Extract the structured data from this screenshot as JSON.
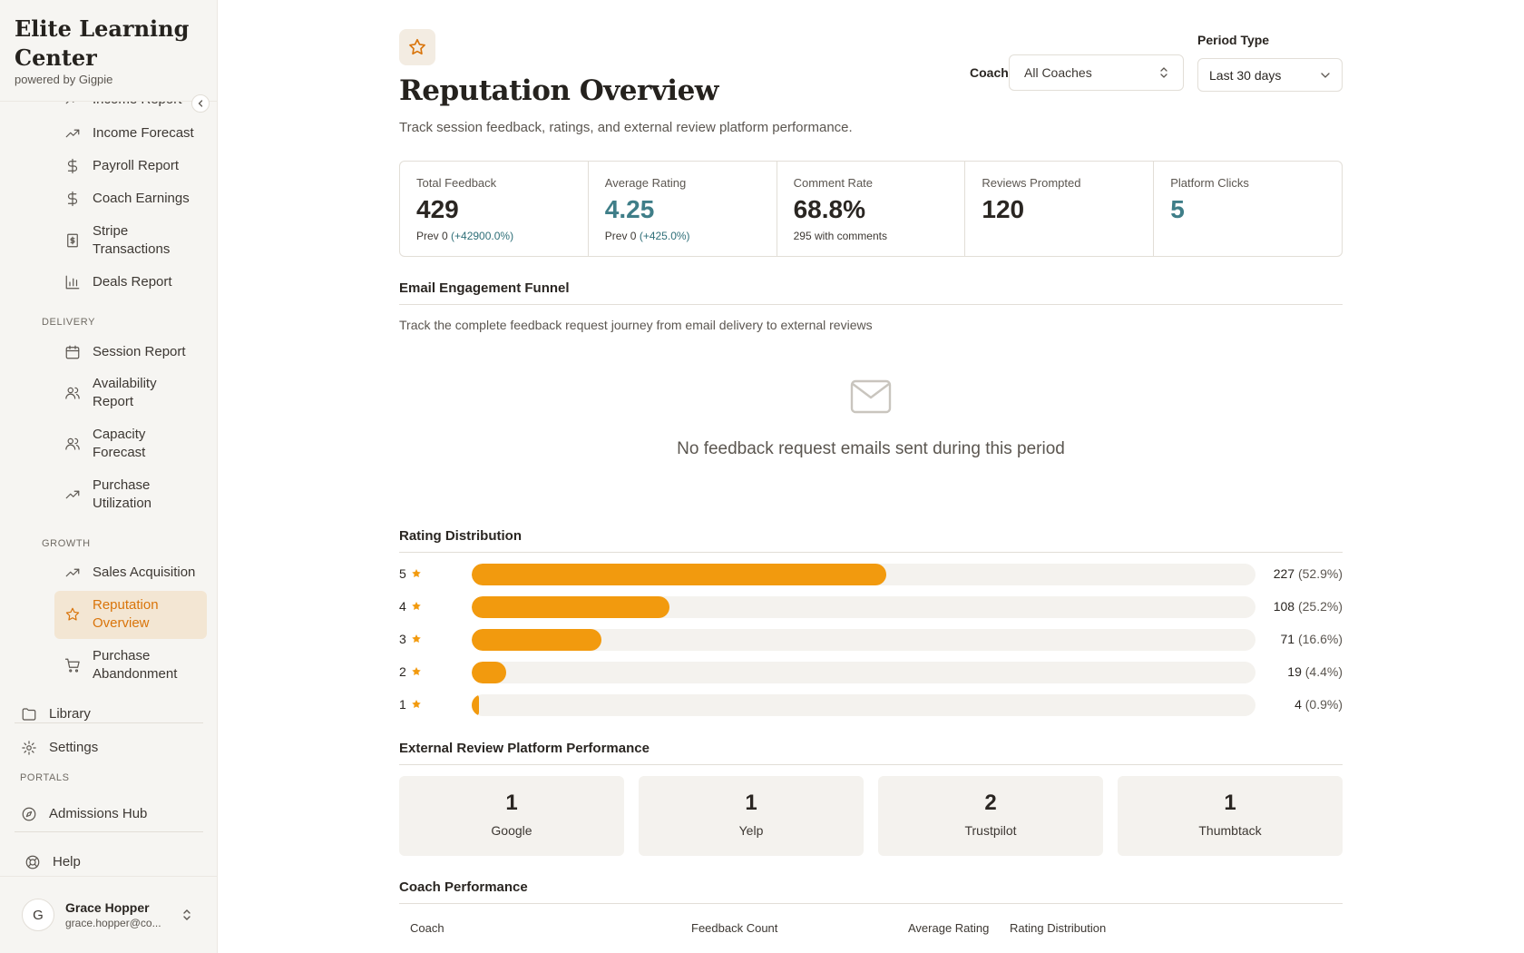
{
  "brand": {
    "title": "Elite Learning Center",
    "subtitle": "powered by Gigpie"
  },
  "sidebar": {
    "cut_item": "Income Report",
    "reports": [
      {
        "label": "Income Forecast",
        "icon": "trend-up-icon"
      },
      {
        "label": "Payroll Report",
        "icon": "dollar-icon"
      },
      {
        "label": "Coach Earnings",
        "icon": "dollar-icon"
      },
      {
        "label": "Stripe Transactions",
        "icon": "receipt-dollar-icon"
      },
      {
        "label": "Deals Report",
        "icon": "bar-chart-icon"
      }
    ],
    "delivery_label": "DELIVERY",
    "delivery": [
      {
        "label": "Session Report",
        "icon": "calendar-icon"
      },
      {
        "label": "Availability Report",
        "icon": "users-icon"
      },
      {
        "label": "Capacity Forecast",
        "icon": "users-icon"
      },
      {
        "label": "Purchase Utilization",
        "icon": "trend-up-icon"
      }
    ],
    "growth_label": "GROWTH",
    "growth": [
      {
        "label": "Sales Acquisition",
        "icon": "trend-up-icon"
      },
      {
        "label": "Reputation Overview",
        "icon": "star-icon",
        "active": true
      },
      {
        "label": "Purchase Abandonment",
        "icon": "cart-icon"
      }
    ],
    "library": "Library",
    "settings": "Settings",
    "portals_label": "PORTALS",
    "admissions": "Admissions Hub",
    "help": "Help"
  },
  "user": {
    "initial": "G",
    "name": "Grace Hopper",
    "email": "grace.hopper@co..."
  },
  "header": {
    "title": "Reputation Overview",
    "subtitle": "Track session feedback, ratings, and external review platform performance.",
    "coach_label": "Coach",
    "coach_value": "All Coaches",
    "period_label": "Period Type",
    "period_value": "Last 30 days"
  },
  "stats": [
    {
      "label": "Total Feedback",
      "value": "429",
      "note_prev": "Prev 0",
      "note_change": "(+42900.0%)"
    },
    {
      "label": "Average Rating",
      "value": "4.25",
      "note_prev": "Prev 0",
      "note_change": "(+425.0%)"
    },
    {
      "label": "Comment Rate",
      "value": "68.8%",
      "note": "295 with comments"
    },
    {
      "label": "Reviews Prompted",
      "value": "120"
    },
    {
      "label": "Platform Clicks",
      "value": "5"
    }
  ],
  "funnel": {
    "title": "Email Engagement Funnel",
    "description": "Track the complete feedback request journey from email delivery to external reviews",
    "empty_message": "No feedback request emails sent during this period"
  },
  "rating_distribution": {
    "title": "Rating Distribution",
    "rows": [
      {
        "stars": "5",
        "count": "227",
        "pct": "(52.9%)",
        "fraction": 0.529
      },
      {
        "stars": "4",
        "count": "108",
        "pct": "(25.2%)",
        "fraction": 0.252
      },
      {
        "stars": "3",
        "count": "71",
        "pct": "(16.6%)",
        "fraction": 0.166
      },
      {
        "stars": "2",
        "count": "19",
        "pct": "(4.4%)",
        "fraction": 0.044
      },
      {
        "stars": "1",
        "count": "4",
        "pct": "(0.9%)",
        "fraction": 0.009
      }
    ]
  },
  "platforms": {
    "title": "External Review Platform Performance",
    "items": [
      {
        "count": "1",
        "name": "Google"
      },
      {
        "count": "1",
        "name": "Yelp"
      },
      {
        "count": "2",
        "name": "Trustpilot"
      },
      {
        "count": "1",
        "name": "Thumbtack"
      }
    ]
  },
  "coach_performance": {
    "title": "Coach Performance",
    "columns": [
      "Coach",
      "Feedback Count",
      "Average Rating",
      "Rating Distribution"
    ]
  },
  "colors": {
    "accent": "#f29a0e",
    "active": "#d9740a",
    "teal": "#3f7e88"
  }
}
